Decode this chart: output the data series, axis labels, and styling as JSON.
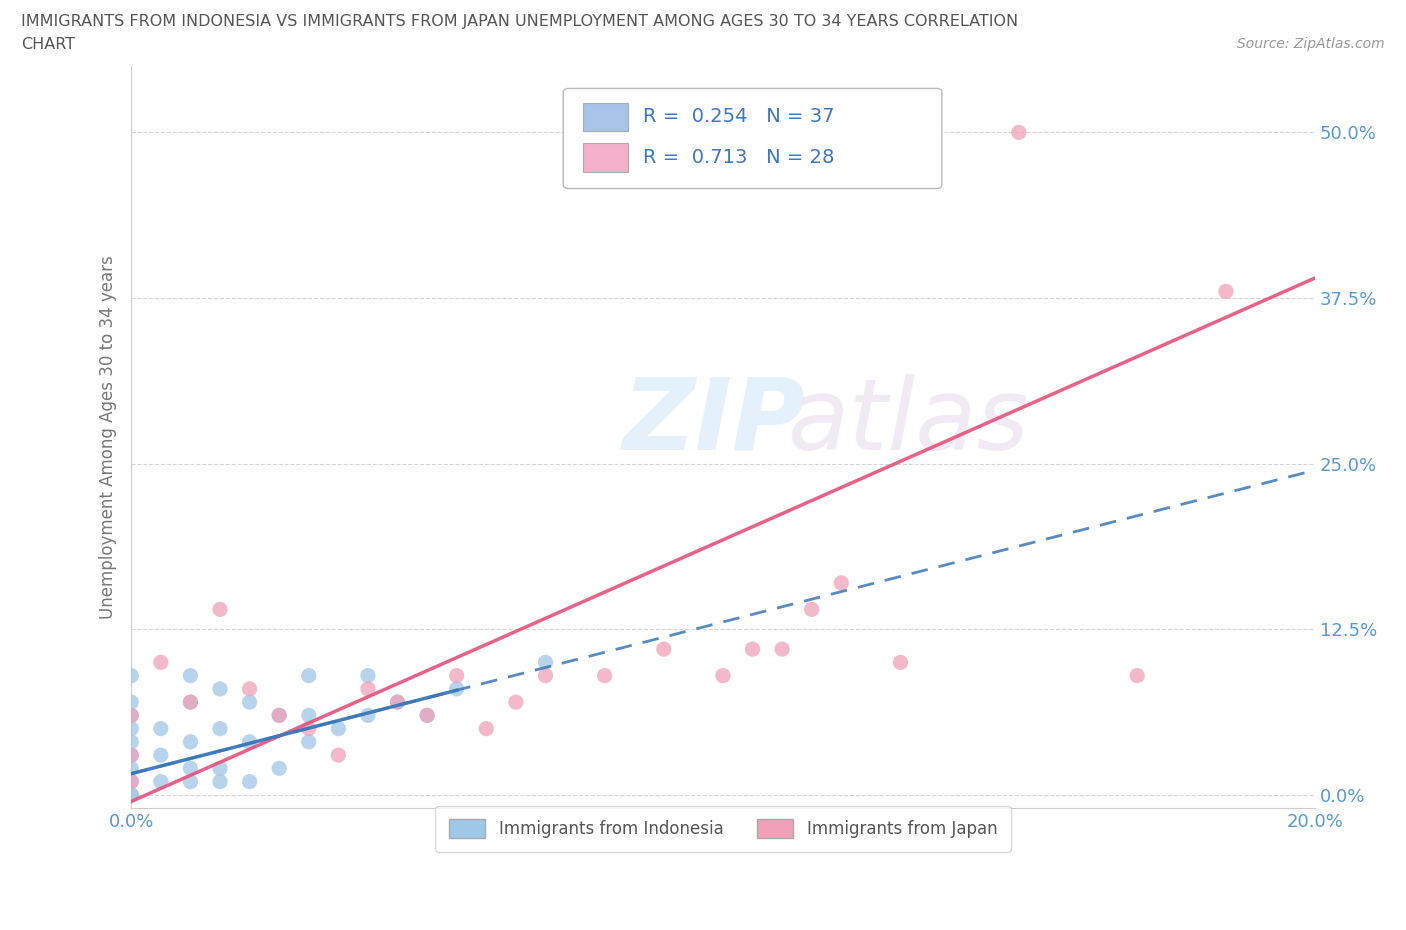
{
  "title_line1": "IMMIGRANTS FROM INDONESIA VS IMMIGRANTS FROM JAPAN UNEMPLOYMENT AMONG AGES 30 TO 34 YEARS CORRELATION",
  "title_line2": "CHART",
  "source": "Source: ZipAtlas.com",
  "ylabel": "Unemployment Among Ages 30 to 34 years",
  "xlabel": "",
  "xlim": [
    0.0,
    0.2
  ],
  "ylim": [
    -0.01,
    0.55
  ],
  "yticks": [
    0.0,
    0.125,
    0.25,
    0.375,
    0.5
  ],
  "ytick_labels": [
    "0.0%",
    "12.5%",
    "25.0%",
    "37.5%",
    "50.0%"
  ],
  "xticks": [
    0.0,
    0.05,
    0.1,
    0.15,
    0.2
  ],
  "xtick_labels": [
    "0.0%",
    "",
    "",
    "",
    "20.0%"
  ],
  "legend_labels_bottom": [
    "Immigrants from Indonesia",
    "Immigrants from Japan"
  ],
  "indonesia_color": "#9ec8e8",
  "japan_color": "#f0a0b8",
  "indonesia_line_color": "#3a78b8",
  "japan_line_color": "#e8507a",
  "watermark_zip": "ZIP",
  "watermark_atlas": "atlas",
  "grid_color": "#cccccc",
  "background_color": "#ffffff",
  "title_color": "#555555",
  "axis_label_color": "#777777",
  "tick_color": "#5599dd",
  "r_value_color": "#3a78cc",
  "legend_box_color": "#a8c4e8",
  "legend_box_japan_color": "#f4b0c8",
  "legend_entry1": "R =  0.254   N = 37",
  "legend_entry2": "R =  0.713   N = 28",
  "indonesia_scatter_x": [
    0.0,
    0.0,
    0.0,
    0.0,
    0.0,
    0.0,
    0.0,
    0.0,
    0.0,
    0.0,
    0.005,
    0.005,
    0.005,
    0.01,
    0.01,
    0.01,
    0.01,
    0.01,
    0.015,
    0.015,
    0.015,
    0.015,
    0.02,
    0.02,
    0.02,
    0.025,
    0.025,
    0.03,
    0.03,
    0.03,
    0.035,
    0.04,
    0.04,
    0.045,
    0.05,
    0.055,
    0.07
  ],
  "indonesia_scatter_y": [
    0.0,
    0.0,
    0.01,
    0.02,
    0.03,
    0.04,
    0.05,
    0.06,
    0.07,
    0.09,
    0.01,
    0.03,
    0.05,
    0.01,
    0.02,
    0.04,
    0.07,
    0.09,
    0.01,
    0.02,
    0.05,
    0.08,
    0.01,
    0.04,
    0.07,
    0.02,
    0.06,
    0.04,
    0.06,
    0.09,
    0.05,
    0.06,
    0.09,
    0.07,
    0.06,
    0.08,
    0.1
  ],
  "japan_scatter_x": [
    0.0,
    0.0,
    0.0,
    0.005,
    0.01,
    0.015,
    0.02,
    0.025,
    0.03,
    0.035,
    0.04,
    0.045,
    0.05,
    0.055,
    0.06,
    0.065,
    0.07,
    0.08,
    0.09,
    0.1,
    0.105,
    0.11,
    0.115,
    0.12,
    0.13,
    0.15,
    0.17,
    0.185
  ],
  "japan_scatter_y": [
    0.01,
    0.03,
    0.06,
    0.1,
    0.07,
    0.14,
    0.08,
    0.06,
    0.05,
    0.03,
    0.08,
    0.07,
    0.06,
    0.09,
    0.05,
    0.07,
    0.09,
    0.09,
    0.11,
    0.09,
    0.11,
    0.11,
    0.14,
    0.16,
    0.1,
    0.5,
    0.09,
    0.38
  ],
  "indo_line_x0": 0.0,
  "indo_line_x1": 0.2,
  "indo_line_y0": 0.016,
  "indo_line_y1": 0.245,
  "japan_line_x0": 0.0,
  "japan_line_x1": 0.2,
  "japan_line_y0": -0.005,
  "japan_line_y1": 0.39
}
